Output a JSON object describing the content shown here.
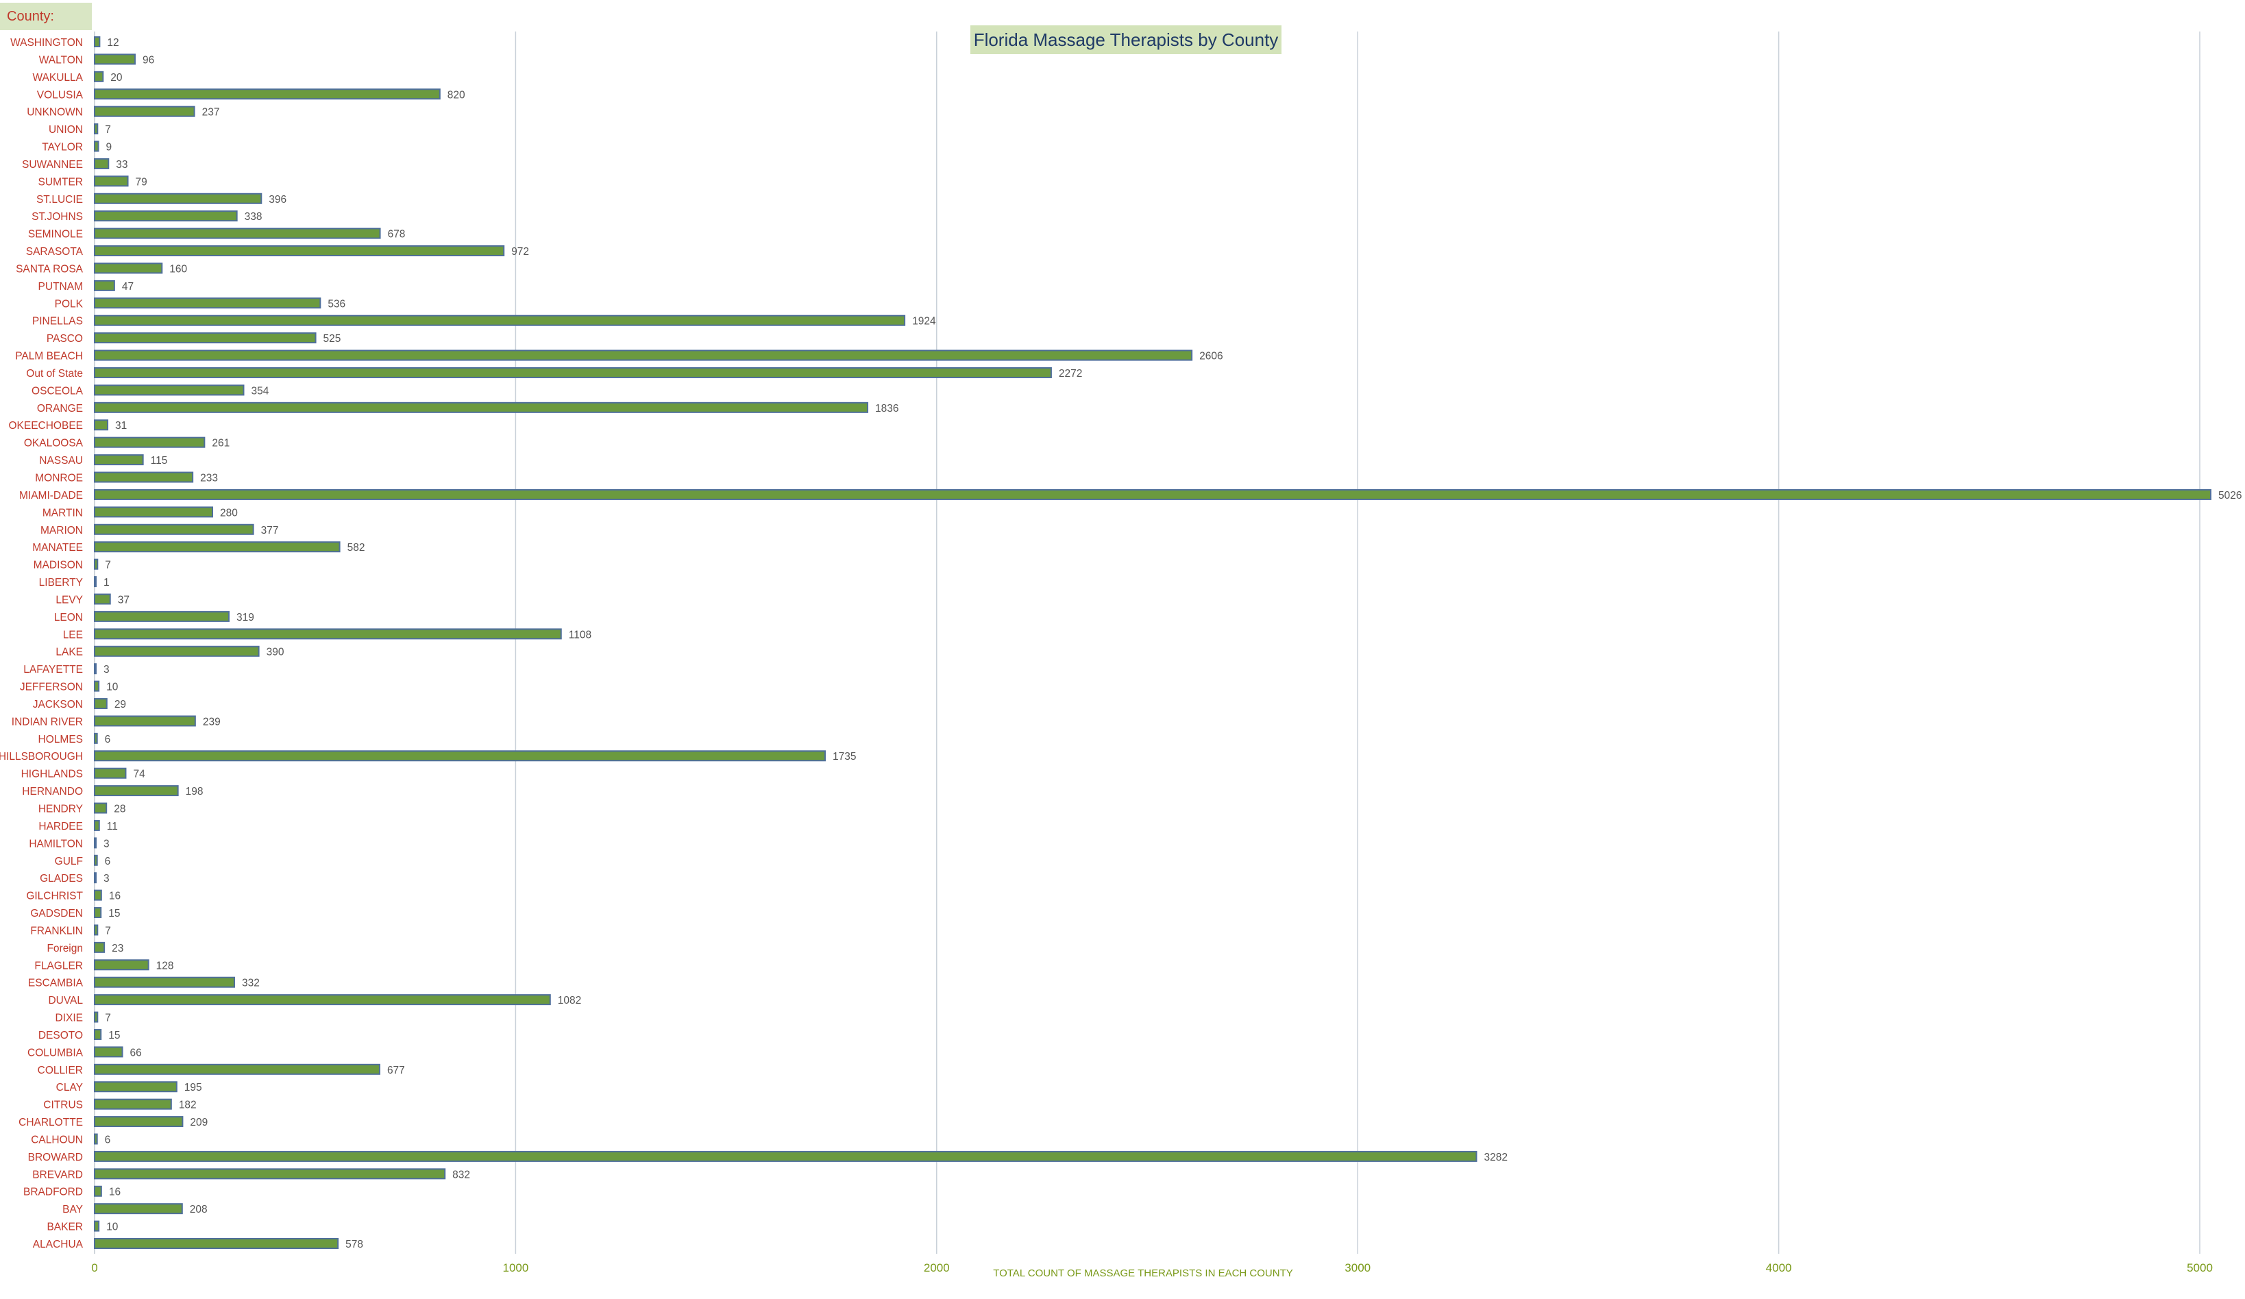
{
  "filter": {
    "label": "County:",
    "label_color": "#c0392b"
  },
  "chart_data": {
    "type": "bar",
    "orientation": "horizontal",
    "title": "Florida Massage Therapists by County",
    "xlabel": "TOTAL COUNT OF MASSAGE THERAPISTS IN EACH COUNTY",
    "ylabel": "",
    "xlim": [
      0,
      5000
    ],
    "xticks": [
      0,
      1000,
      2000,
      3000,
      4000,
      5000
    ],
    "grid": "vertical",
    "legend": "none",
    "colors": {
      "bar": "#6b9a3f",
      "bar_border": "#4f6f9b",
      "category_label": "#c0392b",
      "tick_label": "#7a9a1a",
      "xlabel": "#7a9a1a",
      "data_label": "#555555",
      "gridline": "#c8d0d8",
      "title_text": "#1f3a66",
      "title_bg": "#d3e3b9"
    },
    "categories": [
      "WASHINGTON",
      "WALTON",
      "WAKULLA",
      "VOLUSIA",
      "UNKNOWN",
      "UNION",
      "TAYLOR",
      "SUWANNEE",
      "SUMTER",
      "ST.LUCIE",
      "ST.JOHNS",
      "SEMINOLE",
      "SARASOTA",
      "SANTA ROSA",
      "PUTNAM",
      "POLK",
      "PINELLAS",
      "PASCO",
      "PALM BEACH",
      "Out of State",
      "OSCEOLA",
      "ORANGE",
      "OKEECHOBEE",
      "OKALOOSA",
      "NASSAU",
      "MONROE",
      "MIAMI-DADE",
      "MARTIN",
      "MARION",
      "MANATEE",
      "MADISON",
      "LIBERTY",
      "LEVY",
      "LEON",
      "LEE",
      "LAKE",
      "LAFAYETTE",
      "JEFFERSON",
      "JACKSON",
      "INDIAN RIVER",
      "HOLMES",
      "HILLSBOROUGH",
      "HIGHLANDS",
      "HERNANDO",
      "HENDRY",
      "HARDEE",
      "HAMILTON",
      "GULF",
      "GLADES",
      "GILCHRIST",
      "GADSDEN",
      "FRANKLIN",
      "Foreign",
      "FLAGLER",
      "ESCAMBIA",
      "DUVAL",
      "DIXIE",
      "DESOTO",
      "COLUMBIA",
      "COLLIER",
      "CLAY",
      "CITRUS",
      "CHARLOTTE",
      "CALHOUN",
      "BROWARD",
      "BREVARD",
      "BRADFORD",
      "BAY",
      "BAKER",
      "ALACHUA"
    ],
    "values": [
      12,
      96,
      20,
      820,
      237,
      7,
      9,
      33,
      79,
      396,
      338,
      678,
      972,
      160,
      47,
      536,
      1924,
      525,
      2606,
      2272,
      354,
      1836,
      31,
      261,
      115,
      233,
      5026,
      280,
      377,
      582,
      7,
      1,
      37,
      319,
      1108,
      390,
      3,
      10,
      29,
      239,
      6,
      1735,
      74,
      198,
      28,
      11,
      3,
      6,
      3,
      16,
      15,
      7,
      23,
      128,
      332,
      1082,
      7,
      15,
      66,
      677,
      195,
      182,
      209,
      6,
      3282,
      832,
      16,
      208,
      10,
      578
    ]
  }
}
